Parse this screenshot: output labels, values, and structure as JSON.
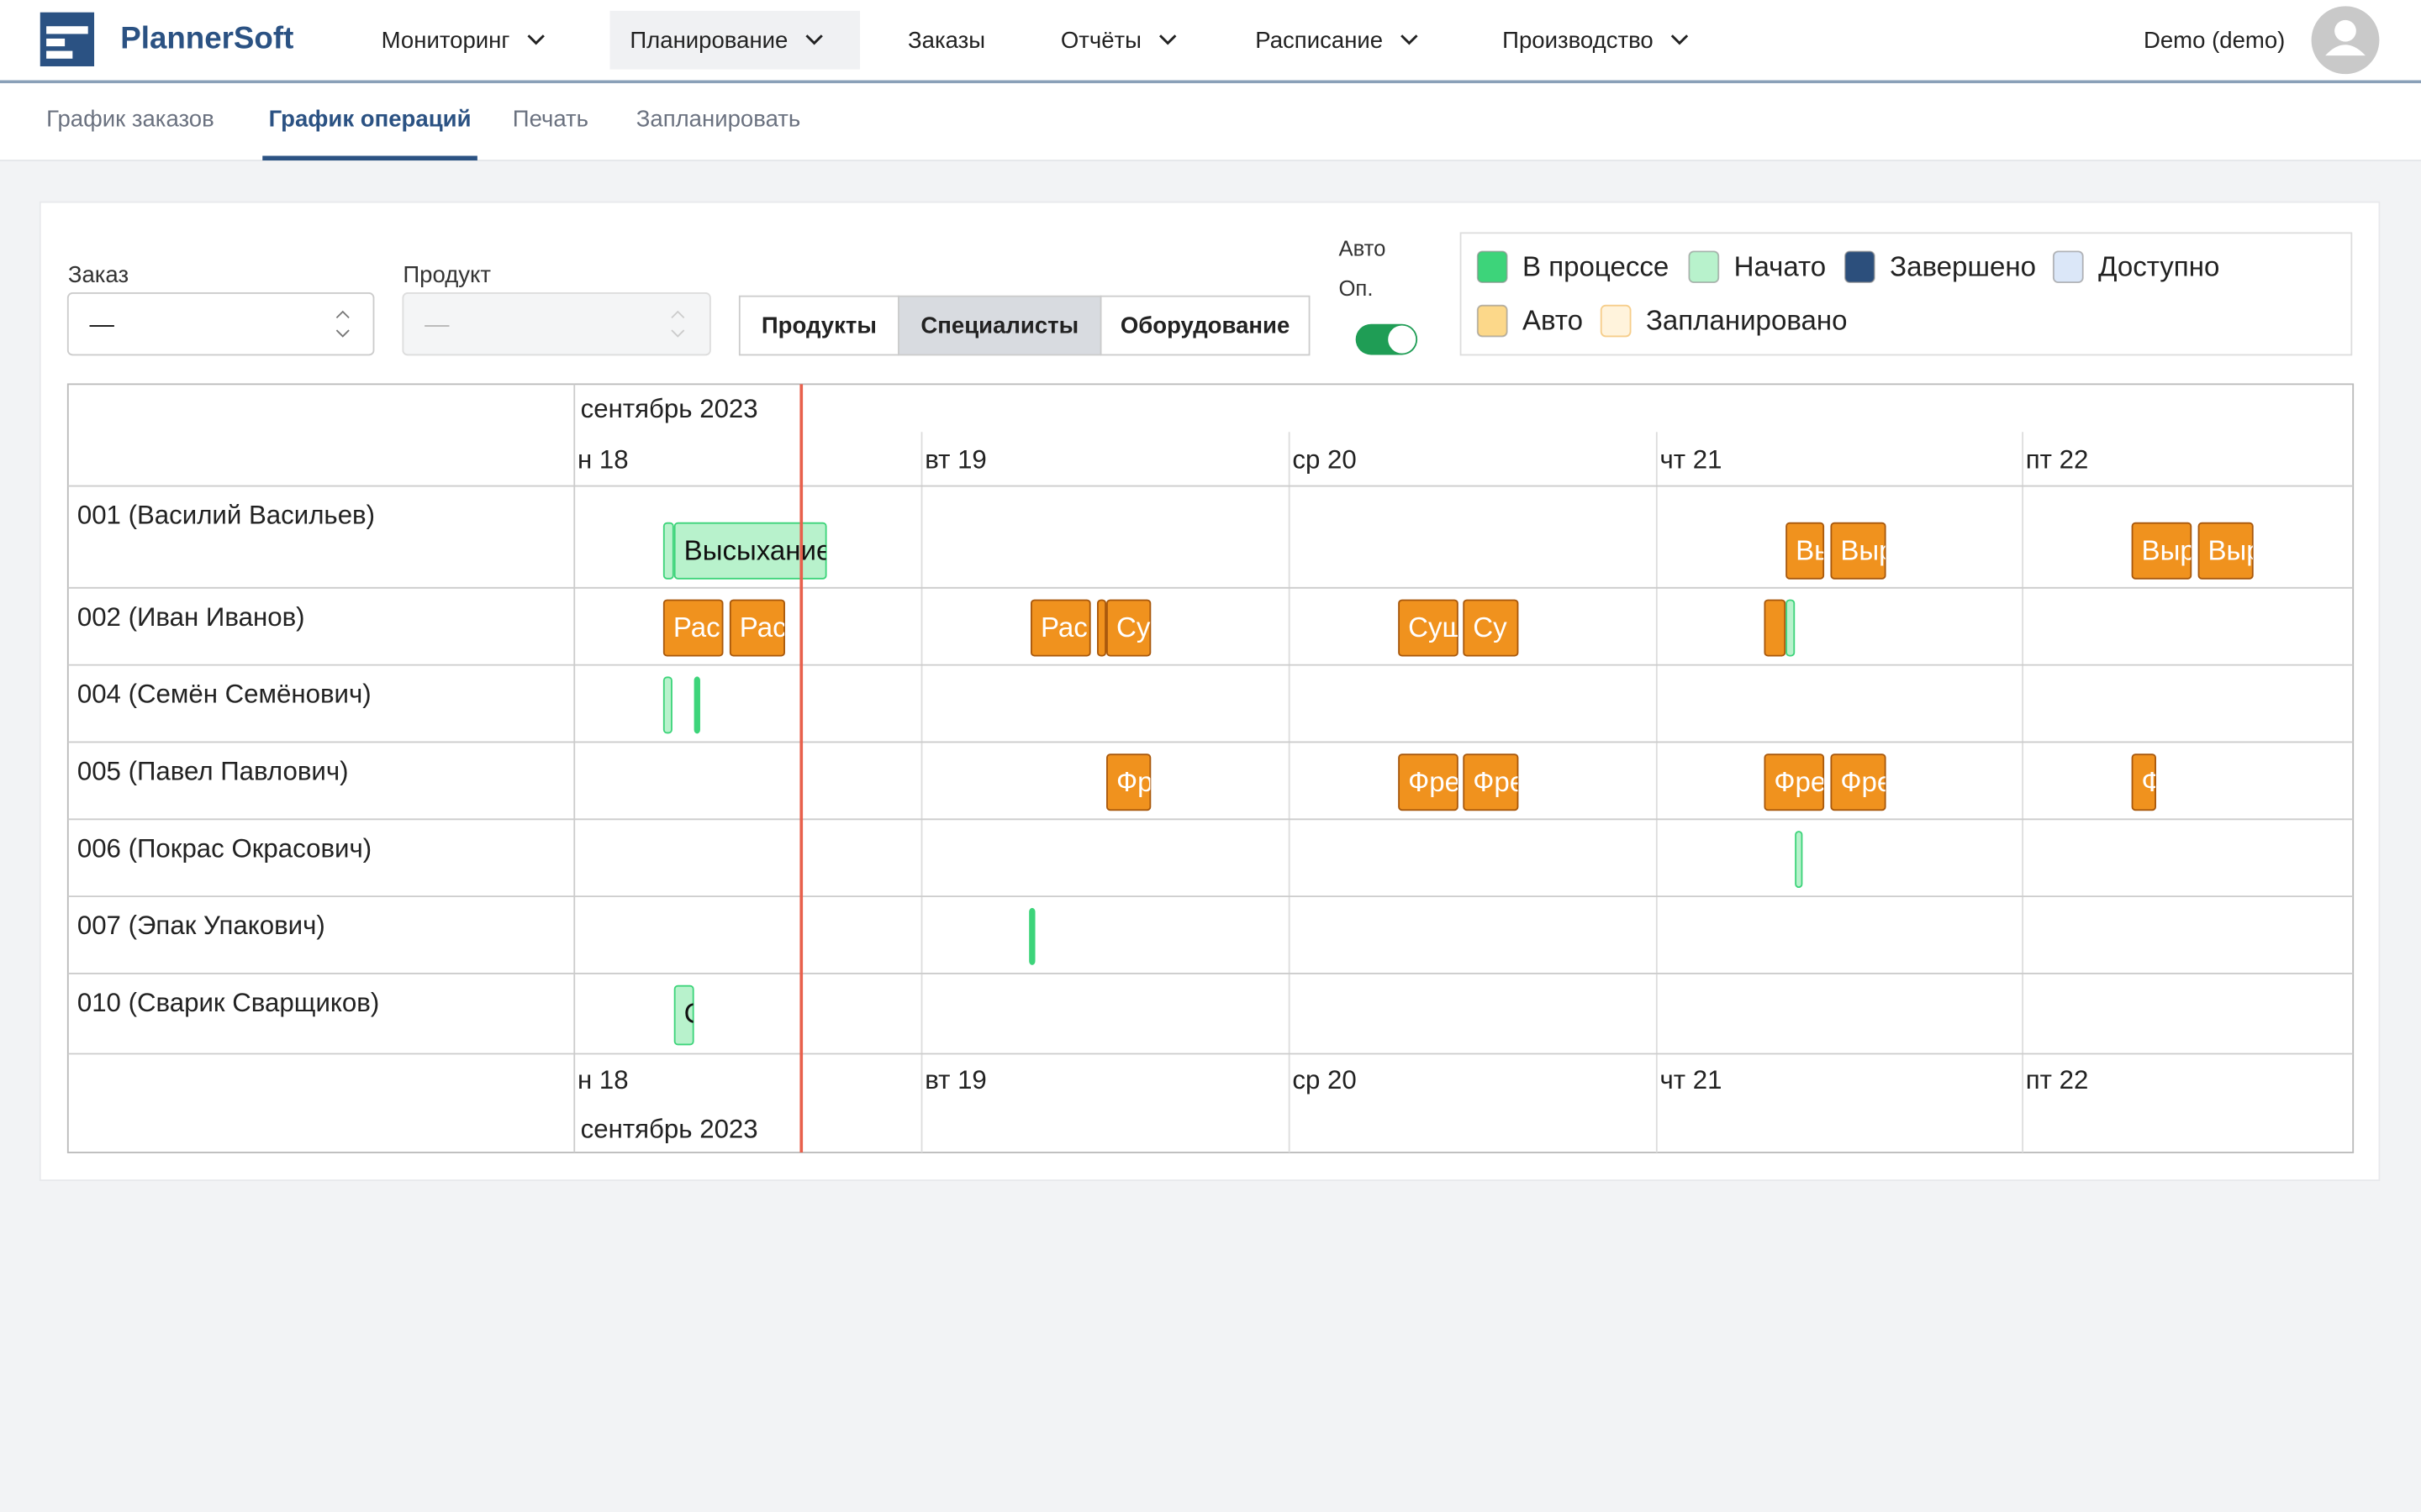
{
  "app": {
    "brand": "PlannerSoft",
    "user": "Demo (demo)"
  },
  "nav": [
    {
      "label": "Мониторинг",
      "dropdown": true
    },
    {
      "label": "Планирование",
      "dropdown": true,
      "active": true
    },
    {
      "label": "Заказы",
      "dropdown": false
    },
    {
      "label": "Отчёты",
      "dropdown": true
    },
    {
      "label": "Расписание",
      "dropdown": true
    },
    {
      "label": "Производство",
      "dropdown": true
    }
  ],
  "subnav": [
    {
      "label": "График заказов"
    },
    {
      "label": "График операций",
      "active": true
    },
    {
      "label": "Печать"
    },
    {
      "label": "Запланировать"
    }
  ],
  "filters": {
    "order": {
      "label": "Заказ",
      "value": "—"
    },
    "product": {
      "label": "Продукт",
      "value": "—"
    },
    "views": [
      {
        "label": "Продукты"
      },
      {
        "label": "Специалисты",
        "active": true
      },
      {
        "label": "Оборудование"
      }
    ],
    "auto": {
      "label1": "Авто",
      "label2": "Оп.",
      "on": true
    }
  },
  "legend": [
    {
      "label": "В процессе",
      "color": "#3dd47a"
    },
    {
      "label": "Начато",
      "color": "#b8f2cc"
    },
    {
      "label": "Завершено",
      "color": "#2c4f7c"
    },
    {
      "label": "Доступно",
      "color": "#dbe7f8"
    },
    {
      "label": "Авто",
      "color": "#fcd88a"
    },
    {
      "label": "Запланировано",
      "color": "#fff3dc"
    }
  ],
  "gantt": {
    "month": "сентябрь 2023",
    "days": [
      "н 18",
      "вт 19",
      "ср 20",
      "чт 21",
      "пт 22"
    ],
    "rows": [
      {
        "name": "001 (Василий Васильев)",
        "tasks": [
          {
            "color": "#b8f2cc"
          },
          {
            "label": "Высыхание",
            "color": "#b8f2cc"
          },
          {
            "label": "Вы",
            "color": "#f0921e"
          },
          {
            "label": "Выр",
            "color": "#f0921e"
          },
          {
            "label": "Выр",
            "color": "#f0921e"
          },
          {
            "label": "Выр",
            "color": "#f0921e"
          }
        ]
      },
      {
        "name": "002 (Иван Иванов)",
        "tasks": [
          {
            "label": "Рас",
            "color": "#f0921e"
          },
          {
            "label": "Рас",
            "color": "#f0921e"
          },
          {
            "label": "Рас",
            "color": "#f0921e"
          },
          {
            "color": "#f0921e"
          },
          {
            "label": "Су",
            "color": "#f0921e"
          },
          {
            "label": "Сущ",
            "color": "#f0921e"
          },
          {
            "label": "Су",
            "color": "#f0921e"
          },
          {
            "color": "#f0921e"
          },
          {
            "color": "#b8f2cc"
          }
        ]
      },
      {
        "name": "004 (Семён Семёнович)",
        "tasks": [
          {
            "color": "#b8f2cc"
          },
          {
            "color": "#3dd47a"
          }
        ]
      },
      {
        "name": "005 (Павел Павлович)",
        "tasks": [
          {
            "label": "Фр",
            "color": "#f0921e"
          },
          {
            "label": "Фре",
            "color": "#f0921e"
          },
          {
            "label": "Фре",
            "color": "#f0921e"
          },
          {
            "label": "Фре",
            "color": "#f0921e"
          },
          {
            "label": "Фре",
            "color": "#f0921e"
          },
          {
            "label": "Ф",
            "color": "#f0921e"
          }
        ]
      },
      {
        "name": "006 (Покрас Окрасович)",
        "tasks": [
          {
            "color": "#b8f2cc"
          }
        ]
      },
      {
        "name": "007 (Эпак Упакович)",
        "tasks": [
          {
            "color": "#3dd47a"
          }
        ]
      },
      {
        "name": "010 (Сварик Сварщиков)",
        "tasks": [
          {
            "label": "С",
            "color": "#b8f2cc"
          }
        ]
      }
    ]
  }
}
